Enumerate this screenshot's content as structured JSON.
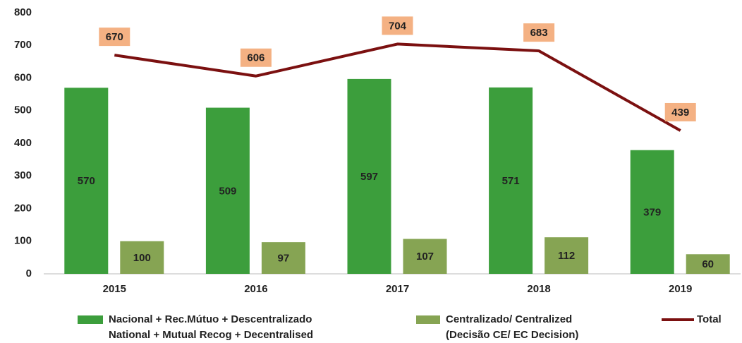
{
  "chart_data": {
    "type": "bar_line",
    "categories": [
      "2015",
      "2016",
      "2017",
      "2018",
      "2019"
    ],
    "series": [
      {
        "name": [
          "Nacional + Rec.Mútuo + Descentralizado",
          "National + Mutual Recog + Decentralised"
        ],
        "type": "bar",
        "color": "#3c9e3c",
        "values": [
          570,
          509,
          597,
          571,
          379
        ]
      },
      {
        "name": [
          "Centralizado/ Centralized",
          "(Decisão CE/ EC Decision)"
        ],
        "type": "bar",
        "color": "#86a453",
        "values": [
          100,
          97,
          107,
          112,
          60
        ]
      },
      {
        "name": [
          "Total"
        ],
        "type": "line",
        "color": "#7b1010",
        "label_fill": "#f4b183",
        "values": [
          670,
          606,
          704,
          683,
          439
        ]
      }
    ],
    "ylim": [
      0,
      800
    ],
    "yticks": [
      0,
      100,
      200,
      300,
      400,
      500,
      600,
      700,
      800
    ],
    "grid": false
  }
}
